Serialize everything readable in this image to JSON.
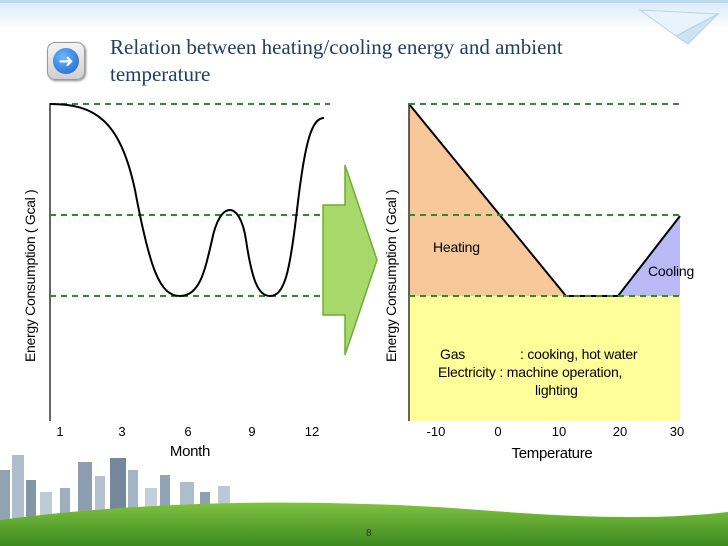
{
  "slide": {
    "title": "Relation between heating/cooling energy and ambient temperature",
    "page_number": "8",
    "nav_icon": "arrow-right-icon"
  },
  "left_chart": {
    "ylabel": "Energy Consumption ( Gcal )",
    "xlabel": "Month",
    "x_ticks": [
      "1",
      "3",
      "6",
      "9",
      "12"
    ]
  },
  "right_chart": {
    "ylabel": "Energy Consumption ( Gcal )",
    "xlabel": "Temperature",
    "x_ticks": [
      "-10",
      "0",
      "10",
      "20",
      "30"
    ],
    "heating_label": "Heating",
    "cooling_label": "Cooling",
    "gas_label": "Gas",
    "gas_desc": ": cooking, hot water",
    "electricity_label": "Electricity : machine operation,",
    "electricity_desc_2": "lighting"
  },
  "colors": {
    "title": "#1f3f66",
    "heating": "#f9c89a",
    "cooling": "#b9b9f5",
    "base": "#ffff99",
    "guide_lines": "#2e8b2e",
    "arrow": "#a8d86a"
  }
}
